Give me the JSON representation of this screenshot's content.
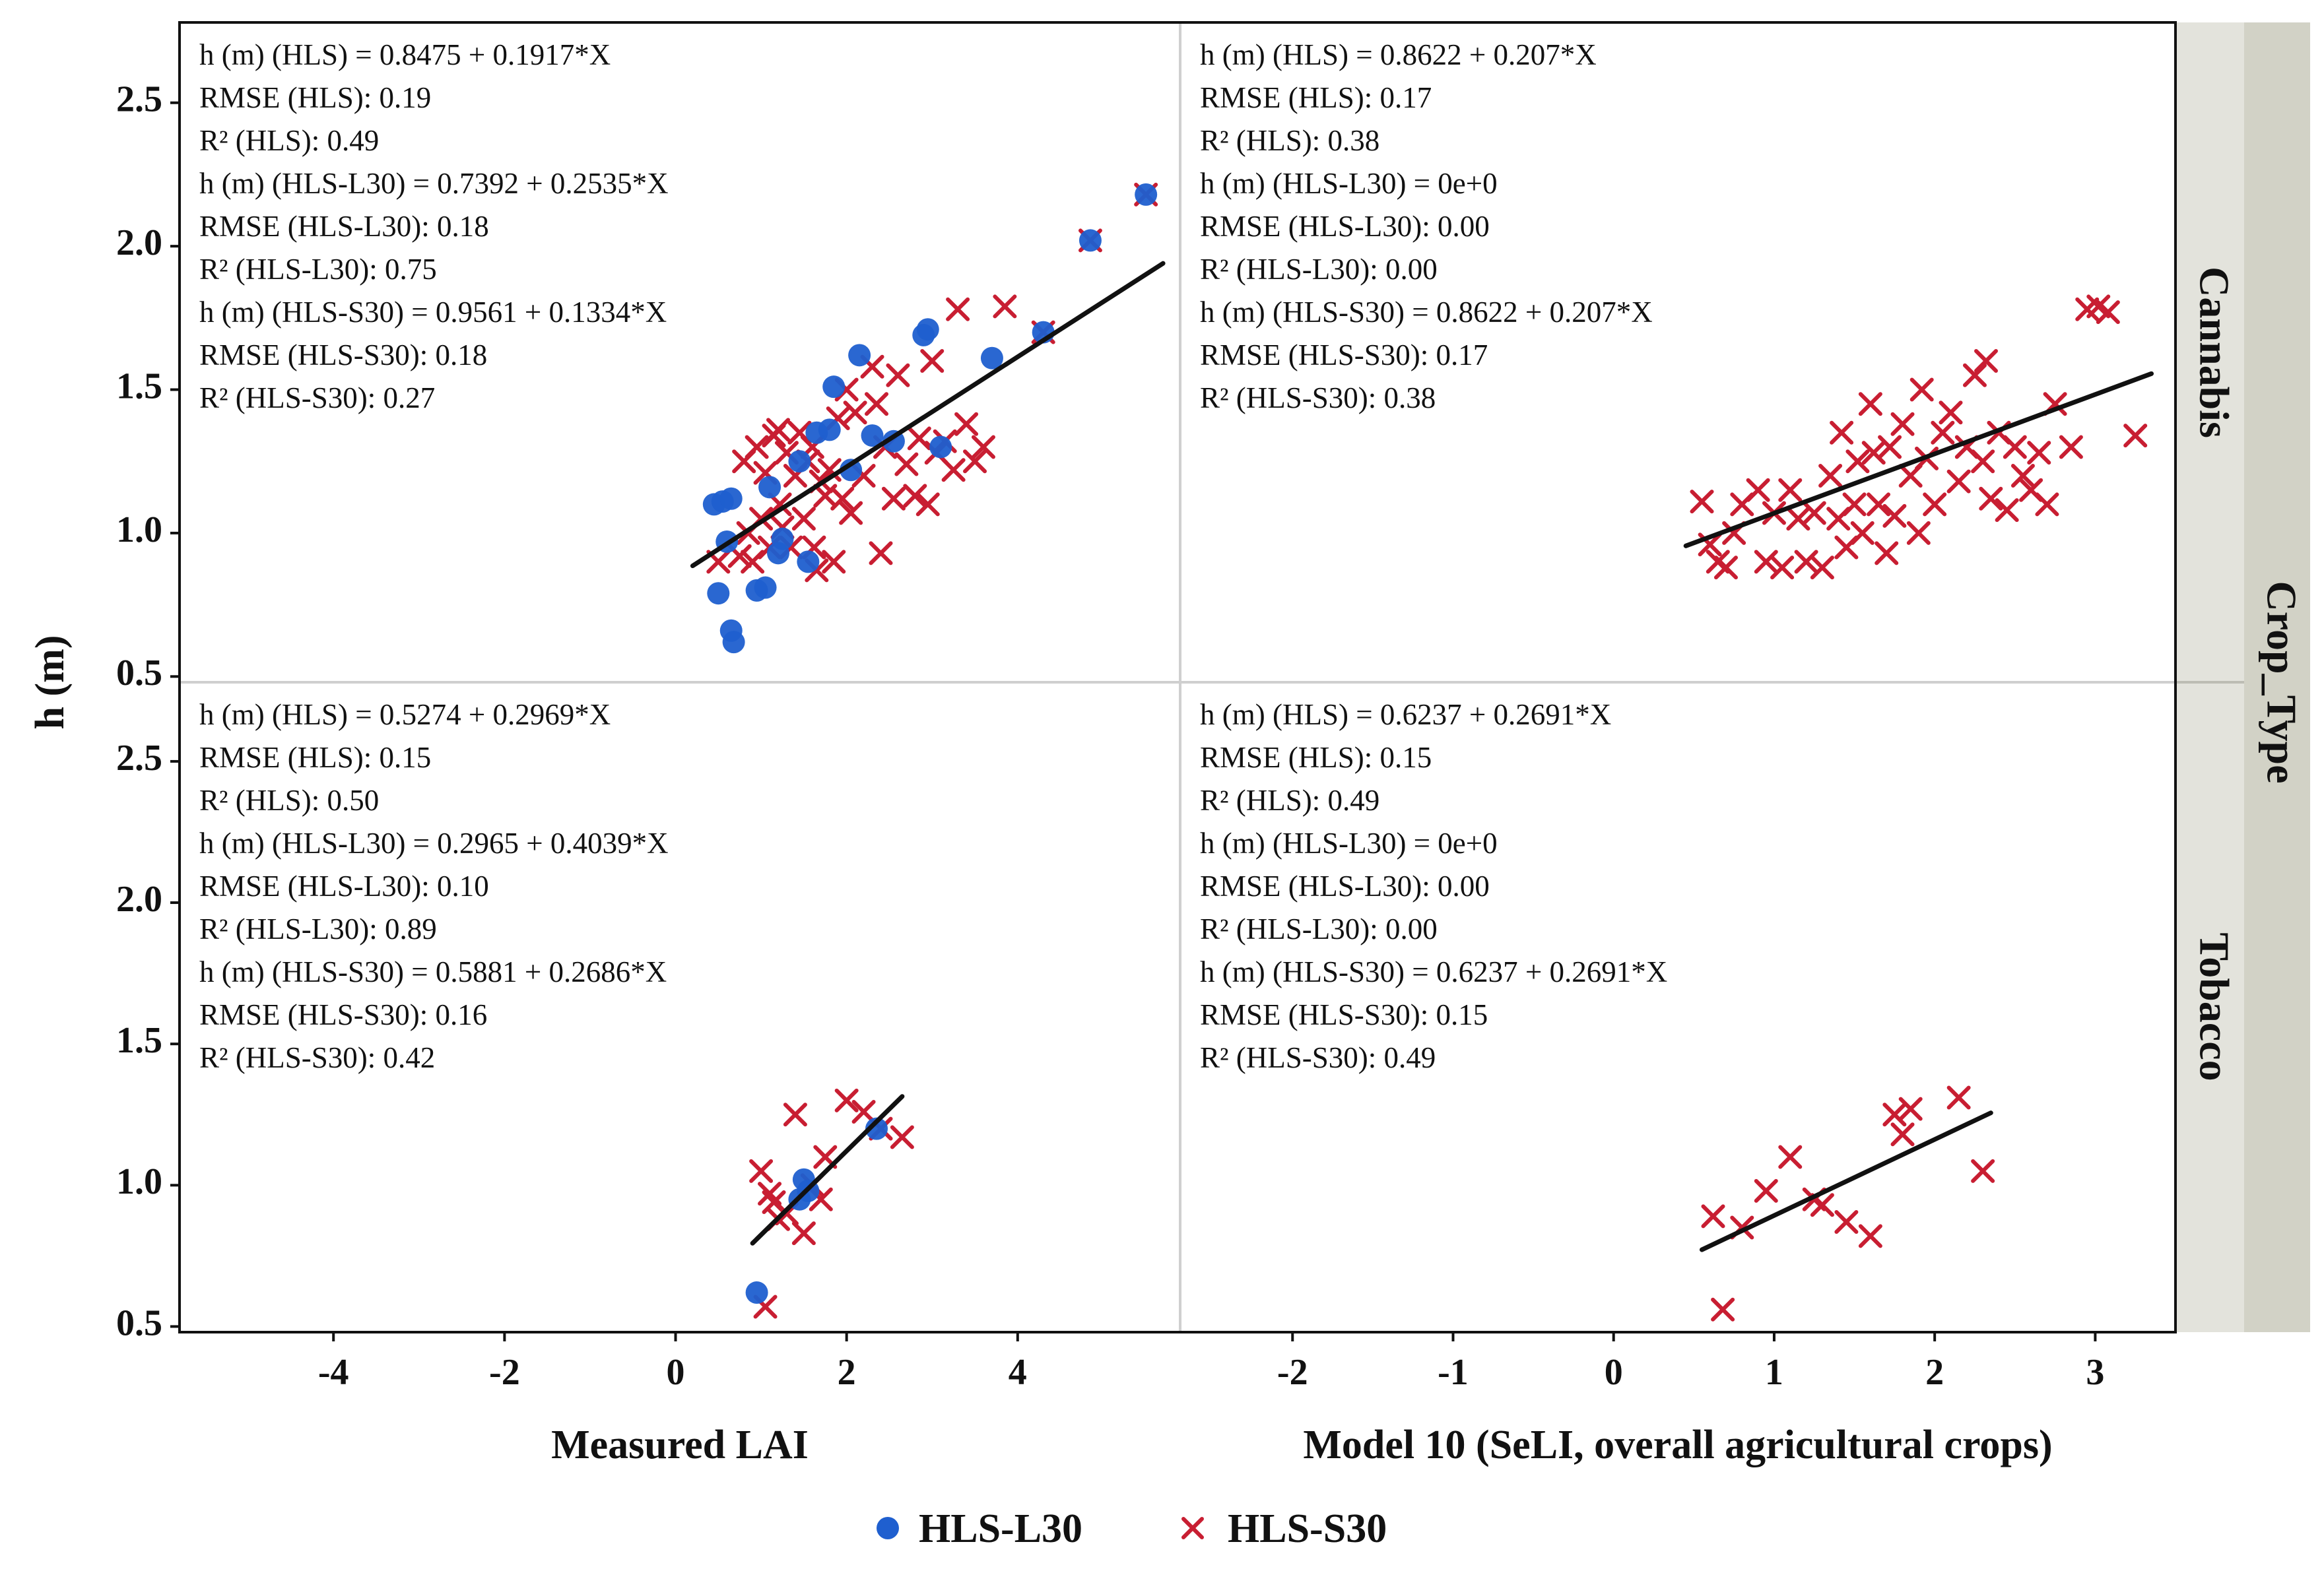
{
  "chart_data": {
    "type": "scatter",
    "ylabel": "h (m)",
    "ylim": [
      0.48,
      2.78
    ],
    "y_ticks": [
      "0.5",
      "1.0",
      "1.5",
      "2.0",
      "2.5"
    ],
    "facet_title": "Crop_Type",
    "rows": [
      "Cannabis",
      "Tobacco"
    ],
    "legend": [
      {
        "name": "HLS-L30",
        "marker": "circle",
        "color": "#1f5fcf"
      },
      {
        "name": "HLS-S30",
        "marker": "x",
        "color": "#c81e32"
      }
    ],
    "columns": [
      {
        "xlabel": "Measured LAI",
        "xlim": [
          -5.8,
          5.9
        ],
        "x_ticks": [
          "-4",
          "-2",
          "0",
          "2",
          "4"
        ],
        "x_tick_values": [
          -4,
          -2,
          0,
          2,
          4
        ]
      },
      {
        "xlabel": "Model 10 (SeLI, overall agricultural crops)",
        "xlim": [
          -2.7,
          3.5
        ],
        "x_ticks": [
          "-2",
          "-1",
          "0",
          "1",
          "2",
          "3"
        ],
        "x_tick_values": [
          -2,
          -1,
          0,
          1,
          2,
          3
        ]
      }
    ],
    "panels": [
      {
        "row": "Cannabis",
        "column": "Measured LAI",
        "equations": [
          "h (m) (HLS) = 0.8475 + 0.1917*X",
          "RMSE (HLS): 0.19",
          "R² (HLS): 0.49",
          "h (m) (HLS-L30) = 0.7392 + 0.2535*X",
          "RMSE (HLS-L30): 0.18",
          "R² (HLS-L30): 0.75",
          "h (m) (HLS-S30) = 0.9561 + 0.1334*X",
          "RMSE (HLS-S30): 0.18",
          "R² (HLS-S30): 0.27"
        ],
        "fit_line": {
          "x0": 0.2,
          "x1": 5.7,
          "intercept": 0.8475,
          "slope": 0.1917
        },
        "hls_l30": [
          [
            0.45,
            1.1
          ],
          [
            0.55,
            1.11
          ],
          [
            0.65,
            1.12
          ],
          [
            0.5,
            0.79
          ],
          [
            0.6,
            0.97
          ],
          [
            0.65,
            0.66
          ],
          [
            0.68,
            0.62
          ],
          [
            0.95,
            0.8
          ],
          [
            1.05,
            0.81
          ],
          [
            1.1,
            1.16
          ],
          [
            1.2,
            0.93
          ],
          [
            1.25,
            0.98
          ],
          [
            1.45,
            1.25
          ],
          [
            1.55,
            0.9
          ],
          [
            1.65,
            1.35
          ],
          [
            1.8,
            1.36
          ],
          [
            1.85,
            1.51
          ],
          [
            2.05,
            1.22
          ],
          [
            2.15,
            1.62
          ],
          [
            2.3,
            1.34
          ],
          [
            2.55,
            1.32
          ],
          [
            2.9,
            1.69
          ],
          [
            2.95,
            1.71
          ],
          [
            3.1,
            1.3
          ],
          [
            3.7,
            1.61
          ],
          [
            4.3,
            1.7
          ],
          [
            4.85,
            2.02
          ],
          [
            5.5,
            2.18
          ]
        ],
        "hls_s30": [
          [
            0.5,
            0.9
          ],
          [
            0.75,
            0.92
          ],
          [
            0.8,
            1.25
          ],
          [
            0.85,
            1.0
          ],
          [
            0.9,
            0.9
          ],
          [
            0.95,
            1.3
          ],
          [
            1.0,
            1.05
          ],
          [
            1.05,
            1.21
          ],
          [
            1.1,
            0.95
          ],
          [
            1.15,
            1.34
          ],
          [
            1.2,
            1.36
          ],
          [
            1.22,
            1.1
          ],
          [
            1.25,
            1.02
          ],
          [
            1.3,
            1.28
          ],
          [
            1.35,
            0.95
          ],
          [
            1.4,
            1.2
          ],
          [
            1.45,
            1.35
          ],
          [
            1.5,
            1.05
          ],
          [
            1.55,
            1.25
          ],
          [
            1.6,
            1.3
          ],
          [
            1.62,
            0.95
          ],
          [
            1.65,
            0.87
          ],
          [
            1.7,
            1.18
          ],
          [
            1.75,
            1.13
          ],
          [
            1.8,
            1.22
          ],
          [
            1.85,
            0.9
          ],
          [
            1.9,
            1.4
          ],
          [
            1.95,
            1.12
          ],
          [
            2.0,
            1.5
          ],
          [
            2.05,
            1.07
          ],
          [
            2.1,
            1.42
          ],
          [
            2.2,
            1.2
          ],
          [
            2.3,
            1.58
          ],
          [
            2.35,
            1.45
          ],
          [
            2.4,
            0.93
          ],
          [
            2.45,
            1.3
          ],
          [
            2.55,
            1.12
          ],
          [
            2.6,
            1.55
          ],
          [
            2.7,
            1.24
          ],
          [
            2.8,
            1.13
          ],
          [
            2.85,
            1.33
          ],
          [
            2.95,
            1.1
          ],
          [
            3.0,
            1.6
          ],
          [
            3.05,
            1.28
          ],
          [
            3.15,
            1.32
          ],
          [
            3.25,
            1.22
          ],
          [
            3.3,
            1.78
          ],
          [
            3.4,
            1.38
          ],
          [
            3.5,
            1.25
          ],
          [
            3.6,
            1.3
          ],
          [
            3.85,
            1.79
          ],
          [
            4.3,
            1.7
          ],
          [
            4.85,
            2.02
          ],
          [
            5.5,
            2.18
          ]
        ]
      },
      {
        "row": "Cannabis",
        "column": "Model 10 (SeLI, overall agricultural crops)",
        "equations": [
          "h (m) (HLS) = 0.8622 + 0.207*X",
          "RMSE (HLS): 0.17",
          "R² (HLS): 0.38",
          "h (m) (HLS-L30) = 0e+0",
          "RMSE (HLS-L30): 0.00",
          "R² (HLS-L30): 0.00",
          "h (m) (HLS-S30) = 0.8622 + 0.207*X",
          "RMSE (HLS-S30): 0.17",
          "R² (HLS-S30): 0.38"
        ],
        "fit_line": {
          "x0": 0.45,
          "x1": 3.35,
          "intercept": 0.8622,
          "slope": 0.207
        },
        "hls_l30": [],
        "hls_s30": [
          [
            0.55,
            1.11
          ],
          [
            0.6,
            0.96
          ],
          [
            0.65,
            0.9
          ],
          [
            0.7,
            0.88
          ],
          [
            0.75,
            1.0
          ],
          [
            0.8,
            1.1
          ],
          [
            0.9,
            1.15
          ],
          [
            0.95,
            0.9
          ],
          [
            1.0,
            1.07
          ],
          [
            1.05,
            0.88
          ],
          [
            1.1,
            1.15
          ],
          [
            1.15,
            1.05
          ],
          [
            1.2,
            0.9
          ],
          [
            1.25,
            1.07
          ],
          [
            1.3,
            0.88
          ],
          [
            1.35,
            1.2
          ],
          [
            1.4,
            1.05
          ],
          [
            1.42,
            1.35
          ],
          [
            1.45,
            0.95
          ],
          [
            1.5,
            1.1
          ],
          [
            1.52,
            1.25
          ],
          [
            1.55,
            1.0
          ],
          [
            1.6,
            1.45
          ],
          [
            1.62,
            1.28
          ],
          [
            1.65,
            1.1
          ],
          [
            1.7,
            0.93
          ],
          [
            1.72,
            1.3
          ],
          [
            1.75,
            1.06
          ],
          [
            1.8,
            1.38
          ],
          [
            1.85,
            1.2
          ],
          [
            1.9,
            1.0
          ],
          [
            1.92,
            1.5
          ],
          [
            1.95,
            1.26
          ],
          [
            2.0,
            1.1
          ],
          [
            2.05,
            1.35
          ],
          [
            2.1,
            1.42
          ],
          [
            2.15,
            1.18
          ],
          [
            2.2,
            1.3
          ],
          [
            2.25,
            1.55
          ],
          [
            2.3,
            1.25
          ],
          [
            2.32,
            1.6
          ],
          [
            2.35,
            1.12
          ],
          [
            2.4,
            1.35
          ],
          [
            2.45,
            1.08
          ],
          [
            2.5,
            1.3
          ],
          [
            2.55,
            1.2
          ],
          [
            2.6,
            1.15
          ],
          [
            2.65,
            1.28
          ],
          [
            2.7,
            1.1
          ],
          [
            2.75,
            1.45
          ],
          [
            2.85,
            1.3
          ],
          [
            2.95,
            1.78
          ],
          [
            3.02,
            1.79
          ],
          [
            3.08,
            1.77
          ],
          [
            3.25,
            1.34
          ]
        ]
      },
      {
        "row": "Tobacco",
        "column": "Measured LAI",
        "equations": [
          "h (m) (HLS) = 0.5274 + 0.2969*X",
          "RMSE (HLS): 0.15",
          "R² (HLS): 0.50",
          "h (m) (HLS-L30) = 0.2965 + 0.4039*X",
          "RMSE (HLS-L30): 0.10",
          "R² (HLS-L30): 0.89",
          "h (m) (HLS-S30) = 0.5881 + 0.2686*X",
          "RMSE (HLS-S30): 0.16",
          "R² (HLS-S30): 0.42"
        ],
        "fit_line": {
          "x0": 0.9,
          "x1": 2.65,
          "intercept": 0.5274,
          "slope": 0.2969
        },
        "hls_l30": [
          [
            0.95,
            0.62
          ],
          [
            1.45,
            0.95
          ],
          [
            1.5,
            1.02
          ],
          [
            1.55,
            0.98
          ],
          [
            2.35,
            1.2
          ]
        ],
        "hls_s30": [
          [
            1.0,
            1.05
          ],
          [
            1.05,
            0.57
          ],
          [
            1.1,
            0.97
          ],
          [
            1.15,
            0.94
          ],
          [
            1.2,
            0.88
          ],
          [
            1.3,
            0.9
          ],
          [
            1.4,
            1.25
          ],
          [
            1.5,
            0.83
          ],
          [
            1.6,
            1.0
          ],
          [
            1.7,
            0.95
          ],
          [
            1.75,
            1.1
          ],
          [
            2.0,
            1.3
          ],
          [
            2.2,
            1.26
          ],
          [
            2.4,
            1.2
          ],
          [
            2.65,
            1.17
          ]
        ]
      },
      {
        "row": "Tobacco",
        "column": "Model 10 (SeLI, overall agricultural crops)",
        "equations": [
          "h (m) (HLS) = 0.6237 + 0.2691*X",
          "RMSE (HLS): 0.15",
          "R² (HLS): 0.49",
          "h (m) (HLS-L30) = 0e+0",
          "RMSE (HLS-L30): 0.00",
          "R² (HLS-L30): 0.00",
          "h (m) (HLS-S30) = 0.6237 + 0.2691*X",
          "RMSE (HLS-S30): 0.15",
          "R² (HLS-S30): 0.49"
        ],
        "fit_line": {
          "x0": 0.55,
          "x1": 2.35,
          "intercept": 0.6237,
          "slope": 0.2691
        },
        "hls_l30": [],
        "hls_s30": [
          [
            0.62,
            0.89
          ],
          [
            0.68,
            0.56
          ],
          [
            0.8,
            0.85
          ],
          [
            0.95,
            0.98
          ],
          [
            1.1,
            1.1
          ],
          [
            1.25,
            0.95
          ],
          [
            1.3,
            0.93
          ],
          [
            1.45,
            0.87
          ],
          [
            1.6,
            0.82
          ],
          [
            1.75,
            1.25
          ],
          [
            1.8,
            1.18
          ],
          [
            1.85,
            1.27
          ],
          [
            2.15,
            1.31
          ],
          [
            2.3,
            1.05
          ]
        ]
      }
    ]
  }
}
